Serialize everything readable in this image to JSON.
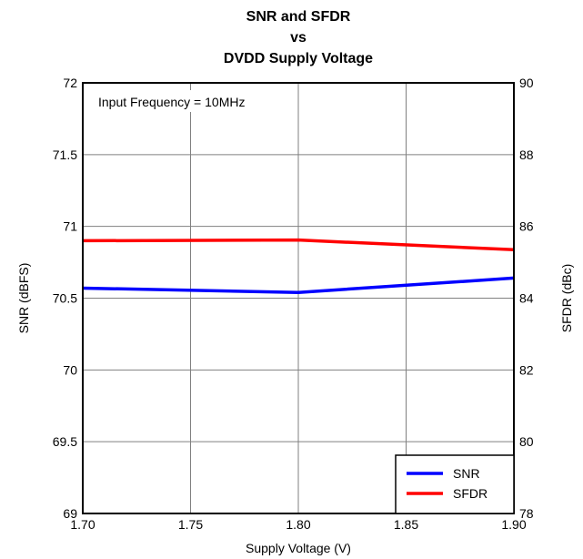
{
  "chart_data": {
    "type": "line",
    "title_lines": [
      "SNR and SFDR",
      "vs",
      "DVDD Supply Voltage"
    ],
    "xlabel": "Supply Voltage (V)",
    "ylabel_left": "SNR (dBFS)",
    "ylabel_right": "SFDR (dBc)",
    "xlim": [
      1.7,
      1.9
    ],
    "ylim_left": [
      69,
      72
    ],
    "ylim_right": [
      78,
      90
    ],
    "x_ticks": [
      "1.70",
      "1.75",
      "1.80",
      "1.85",
      "1.90"
    ],
    "x_tick_values": [
      1.7,
      1.75,
      1.8,
      1.85,
      1.9
    ],
    "y_left_ticks": [
      "69",
      "69.5",
      "70",
      "70.5",
      "71",
      "71.5",
      "72"
    ],
    "y_left_tick_values": [
      69,
      69.5,
      70,
      70.5,
      71,
      71.5,
      72
    ],
    "y_right_ticks": [
      "78",
      "80",
      "82",
      "84",
      "86",
      "88",
      "90"
    ],
    "y_right_tick_values": [
      78,
      80,
      82,
      84,
      86,
      88,
      90
    ],
    "grid": true,
    "annotation": "Input Frequency = 10MHz",
    "legend_position": "bottom-right",
    "series": [
      {
        "name": "SNR",
        "axis": "left",
        "color": "#0000ff",
        "x": [
          1.7,
          1.8,
          1.9
        ],
        "y": [
          70.57,
          70.54,
          70.64
        ]
      },
      {
        "name": "SFDR",
        "axis": "right",
        "color": "#ff0000",
        "x": [
          1.7,
          1.8,
          1.9
        ],
        "y": [
          85.6,
          85.62,
          85.35
        ]
      }
    ]
  }
}
